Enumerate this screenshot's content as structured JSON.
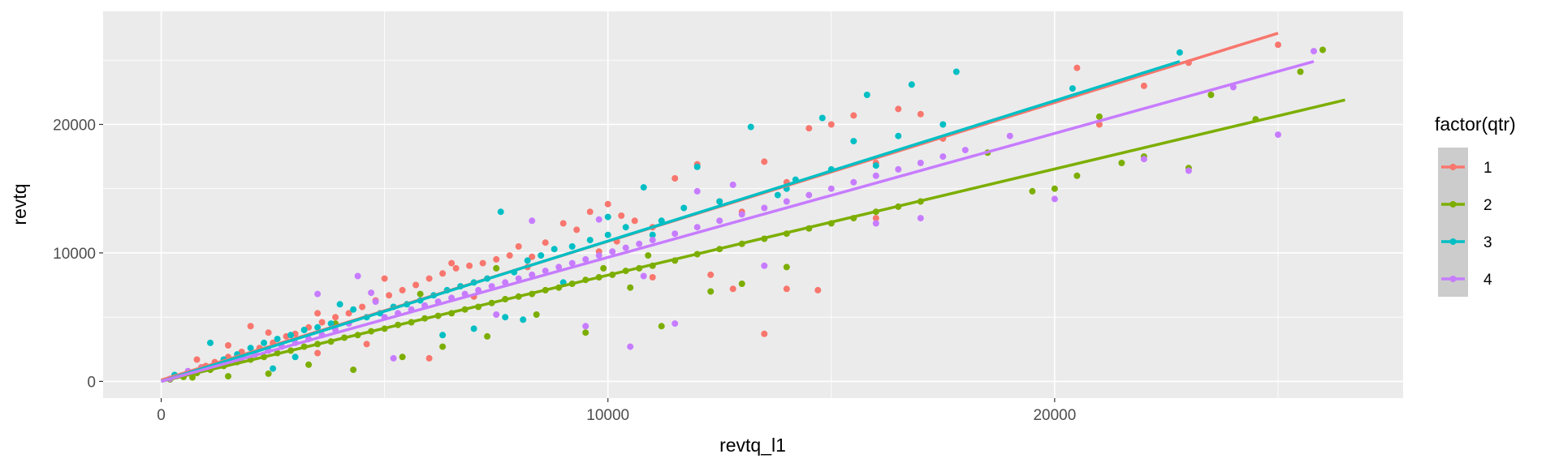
{
  "chart_data": {
    "type": "scatter",
    "title": "",
    "xlabel": "revtq_l1",
    "ylabel": "revtq",
    "xlim": [
      -1300,
      27800
    ],
    "ylim": [
      -1300,
      28800
    ],
    "xticks": [
      0,
      10000,
      20000
    ],
    "yticks": [
      0,
      10000,
      20000
    ],
    "grid": true,
    "panel_background": "#EBEBEB",
    "legend": {
      "title": "factor(qtr)",
      "position": "right"
    },
    "series": [
      {
        "name": "1",
        "color": "#F8766D",
        "trend": [
          [
            0,
            100
          ],
          [
            25000,
            27100
          ]
        ],
        "points": [
          [
            300,
            400
          ],
          [
            600,
            700
          ],
          [
            900,
            1100
          ],
          [
            1200,
            1500
          ],
          [
            1500,
            1900
          ],
          [
            1800,
            2300
          ],
          [
            2000,
            4300
          ],
          [
            2200,
            2600
          ],
          [
            2500,
            3000
          ],
          [
            2800,
            3500
          ],
          [
            3000,
            3700
          ],
          [
            3300,
            4200
          ],
          [
            3600,
            4600
          ],
          [
            3900,
            5000
          ],
          [
            4200,
            5300
          ],
          [
            4500,
            5800
          ],
          [
            4800,
            6300
          ],
          [
            5100,
            6700
          ],
          [
            5400,
            7100
          ],
          [
            5700,
            7500
          ],
          [
            6000,
            8000
          ],
          [
            6300,
            8400
          ],
          [
            6600,
            8800
          ],
          [
            6900,
            9000
          ],
          [
            7200,
            9200
          ],
          [
            7500,
            9500
          ],
          [
            7800,
            9800
          ],
          [
            8000,
            10500
          ],
          [
            8300,
            9700
          ],
          [
            8600,
            10800
          ],
          [
            9000,
            12300
          ],
          [
            9300,
            11800
          ],
          [
            9600,
            13200
          ],
          [
            10000,
            13800
          ],
          [
            10300,
            12900
          ],
          [
            10600,
            12500
          ],
          [
            11000,
            12000
          ],
          [
            11500,
            15800
          ],
          [
            12000,
            16900
          ],
          [
            12500,
            14000
          ],
          [
            13000,
            13200
          ],
          [
            13500,
            17100
          ],
          [
            14000,
            15500
          ],
          [
            14500,
            19700
          ],
          [
            15000,
            20000
          ],
          [
            15500,
            20700
          ],
          [
            16000,
            17000
          ],
          [
            16500,
            21200
          ],
          [
            17000,
            20800
          ],
          [
            17500,
            18900
          ],
          [
            1500,
            2800
          ],
          [
            3500,
            2200
          ],
          [
            3500,
            5300
          ],
          [
            4600,
            2900
          ],
          [
            6000,
            1800
          ],
          [
            7000,
            6600
          ],
          [
            8200,
            8900
          ],
          [
            9800,
            10100
          ],
          [
            10200,
            10900
          ],
          [
            11000,
            8100
          ],
          [
            12300,
            8300
          ],
          [
            12800,
            7200
          ],
          [
            13500,
            3700
          ],
          [
            14000,
            7200
          ],
          [
            14700,
            7100
          ],
          [
            16000,
            12700
          ],
          [
            20500,
            24400
          ],
          [
            21000,
            20000
          ],
          [
            22000,
            23000
          ],
          [
            23000,
            24800
          ],
          [
            25000,
            26200
          ],
          [
            1000,
            1200
          ],
          [
            2400,
            3800
          ],
          [
            5000,
            8000
          ],
          [
            6500,
            9200
          ],
          [
            800,
            1700
          ]
        ]
      },
      {
        "name": "2",
        "color": "#7CAE00",
        "trend": [
          [
            0,
            0
          ],
          [
            26500,
            21900
          ]
        ],
        "points": [
          [
            200,
            150
          ],
          [
            500,
            350
          ],
          [
            800,
            650
          ],
          [
            1100,
            900
          ],
          [
            1400,
            1200
          ],
          [
            1700,
            1500
          ],
          [
            2000,
            1700
          ],
          [
            2300,
            1900
          ],
          [
            2600,
            2200
          ],
          [
            2900,
            2400
          ],
          [
            3200,
            2700
          ],
          [
            3500,
            2900
          ],
          [
            3800,
            3100
          ],
          [
            4100,
            3400
          ],
          [
            4400,
            3600
          ],
          [
            4700,
            3900
          ],
          [
            5000,
            4100
          ],
          [
            5300,
            4400
          ],
          [
            5600,
            4600
          ],
          [
            5900,
            4900
          ],
          [
            6200,
            5100
          ],
          [
            6500,
            5300
          ],
          [
            6800,
            5600
          ],
          [
            7100,
            5800
          ],
          [
            7400,
            6100
          ],
          [
            7700,
            6400
          ],
          [
            8000,
            6600
          ],
          [
            8300,
            6800
          ],
          [
            8600,
            7100
          ],
          [
            8900,
            7300
          ],
          [
            9200,
            7600
          ],
          [
            9500,
            7900
          ],
          [
            9800,
            8100
          ],
          [
            10100,
            8300
          ],
          [
            10400,
            8600
          ],
          [
            10700,
            8800
          ],
          [
            11000,
            9000
          ],
          [
            11500,
            9400
          ],
          [
            12000,
            9900
          ],
          [
            12500,
            10300
          ],
          [
            13000,
            10700
          ],
          [
            13500,
            11100
          ],
          [
            14000,
            11500
          ],
          [
            14500,
            11900
          ],
          [
            15000,
            12300
          ],
          [
            15500,
            12700
          ],
          [
            16000,
            13200
          ],
          [
            16500,
            13600
          ],
          [
            17000,
            14000
          ],
          [
            18500,
            17800
          ],
          [
            19500,
            14800
          ],
          [
            20000,
            15000
          ],
          [
            20500,
            16000
          ],
          [
            21000,
            20600
          ],
          [
            21500,
            17000
          ],
          [
            22000,
            17500
          ],
          [
            23000,
            16600
          ],
          [
            23500,
            22300
          ],
          [
            24500,
            20400
          ],
          [
            25500,
            24100
          ],
          [
            26000,
            25800
          ],
          [
            700,
            300
          ],
          [
            1500,
            400
          ],
          [
            2400,
            600
          ],
          [
            3300,
            1300
          ],
          [
            4300,
            900
          ],
          [
            5400,
            1900
          ],
          [
            6300,
            2700
          ],
          [
            7300,
            3500
          ],
          [
            8400,
            5200
          ],
          [
            9500,
            3800
          ],
          [
            10500,
            7300
          ],
          [
            11200,
            4300
          ],
          [
            12300,
            7000
          ],
          [
            13000,
            7600
          ],
          [
            14000,
            8900
          ],
          [
            3900,
            4500
          ],
          [
            5800,
            6800
          ],
          [
            7500,
            8800
          ],
          [
            9900,
            8800
          ],
          [
            10900,
            9800
          ]
        ]
      },
      {
        "name": "3",
        "color": "#00BFC4",
        "trend": [
          [
            0,
            0
          ],
          [
            22800,
            24900
          ]
        ],
        "points": [
          [
            300,
            500
          ],
          [
            800,
            800
          ],
          [
            1100,
            3000
          ],
          [
            1400,
            1700
          ],
          [
            1700,
            2100
          ],
          [
            2000,
            2600
          ],
          [
            2300,
            3000
          ],
          [
            2600,
            3300
          ],
          [
            2900,
            3600
          ],
          [
            3200,
            4000
          ],
          [
            3500,
            4200
          ],
          [
            3800,
            4500
          ],
          [
            4000,
            6000
          ],
          [
            4300,
            5600
          ],
          [
            4600,
            5000
          ],
          [
            4900,
            5300
          ],
          [
            5200,
            5800
          ],
          [
            5500,
            6000
          ],
          [
            5800,
            6300
          ],
          [
            6100,
            6700
          ],
          [
            6400,
            7100
          ],
          [
            6700,
            7400
          ],
          [
            7000,
            7700
          ],
          [
            7300,
            8000
          ],
          [
            7600,
            13200
          ],
          [
            7900,
            8500
          ],
          [
            8200,
            9400
          ],
          [
            8500,
            9800
          ],
          [
            8800,
            10300
          ],
          [
            9200,
            10500
          ],
          [
            9600,
            11000
          ],
          [
            10000,
            11400
          ],
          [
            10400,
            12000
          ],
          [
            10800,
            15100
          ],
          [
            11200,
            12500
          ],
          [
            11700,
            13500
          ],
          [
            12000,
            16700
          ],
          [
            12500,
            14000
          ],
          [
            13200,
            19800
          ],
          [
            13800,
            14500
          ],
          [
            14200,
            15700
          ],
          [
            14800,
            20500
          ],
          [
            15500,
            18700
          ],
          [
            15800,
            22300
          ],
          [
            16500,
            19100
          ],
          [
            16800,
            23100
          ],
          [
            17800,
            24100
          ],
          [
            20400,
            22800
          ],
          [
            22800,
            25600
          ],
          [
            2500,
            1000
          ],
          [
            3000,
            1900
          ],
          [
            6300,
            3600
          ],
          [
            7000,
            4100
          ],
          [
            7700,
            5000
          ],
          [
            8100,
            4800
          ],
          [
            9000,
            7700
          ],
          [
            10000,
            12800
          ],
          [
            11000,
            11400
          ],
          [
            14000,
            15000
          ],
          [
            15000,
            16500
          ],
          [
            16000,
            16800
          ],
          [
            17500,
            20000
          ]
        ]
      },
      {
        "name": "4",
        "color": "#C77CFF",
        "trend": [
          [
            0,
            0
          ],
          [
            25800,
            24900
          ]
        ],
        "points": [
          [
            200,
            200
          ],
          [
            600,
            800
          ],
          [
            900,
            1000
          ],
          [
            1200,
            1200
          ],
          [
            1500,
            1500
          ],
          [
            1800,
            1800
          ],
          [
            2100,
            2100
          ],
          [
            2400,
            2400
          ],
          [
            2700,
            2700
          ],
          [
            3000,
            3000
          ],
          [
            3300,
            3300
          ],
          [
            3600,
            3600
          ],
          [
            3900,
            4000
          ],
          [
            4200,
            4500
          ],
          [
            4400,
            8200
          ],
          [
            4700,
            6900
          ],
          [
            5000,
            5000
          ],
          [
            5300,
            5300
          ],
          [
            5600,
            5600
          ],
          [
            5900,
            5900
          ],
          [
            6200,
            6200
          ],
          [
            6500,
            6500
          ],
          [
            6800,
            6800
          ],
          [
            7100,
            7100
          ],
          [
            7400,
            7400
          ],
          [
            7700,
            7700
          ],
          [
            8000,
            8000
          ],
          [
            8300,
            8300
          ],
          [
            8600,
            8600
          ],
          [
            8900,
            8900
          ],
          [
            9200,
            9200
          ],
          [
            9500,
            9500
          ],
          [
            9800,
            9800
          ],
          [
            10100,
            10100
          ],
          [
            10400,
            10400
          ],
          [
            10700,
            10700
          ],
          [
            11000,
            11000
          ],
          [
            11500,
            11500
          ],
          [
            12000,
            12000
          ],
          [
            12500,
            12500
          ],
          [
            13000,
            13000
          ],
          [
            13500,
            13500
          ],
          [
            14000,
            14000
          ],
          [
            14500,
            14500
          ],
          [
            15000,
            15000
          ],
          [
            15500,
            15500
          ],
          [
            16000,
            16000
          ],
          [
            16500,
            16500
          ],
          [
            17000,
            17000
          ],
          [
            17500,
            17500
          ],
          [
            18000,
            18000
          ],
          [
            19000,
            19100
          ],
          [
            20000,
            14200
          ],
          [
            22000,
            17300
          ],
          [
            23000,
            16400
          ],
          [
            24000,
            22900
          ],
          [
            25000,
            19200
          ],
          [
            25800,
            25700
          ],
          [
            9500,
            4300
          ],
          [
            10500,
            2700
          ],
          [
            11500,
            4500
          ],
          [
            12000,
            14800
          ],
          [
            3500,
            6800
          ],
          [
            4800,
            6200
          ],
          [
            5200,
            1800
          ],
          [
            7500,
            5200
          ],
          [
            8300,
            12500
          ],
          [
            9800,
            12600
          ],
          [
            10800,
            8200
          ],
          [
            12800,
            15300
          ],
          [
            13500,
            9000
          ],
          [
            16000,
            12300
          ],
          [
            17000,
            12700
          ]
        ]
      }
    ]
  }
}
